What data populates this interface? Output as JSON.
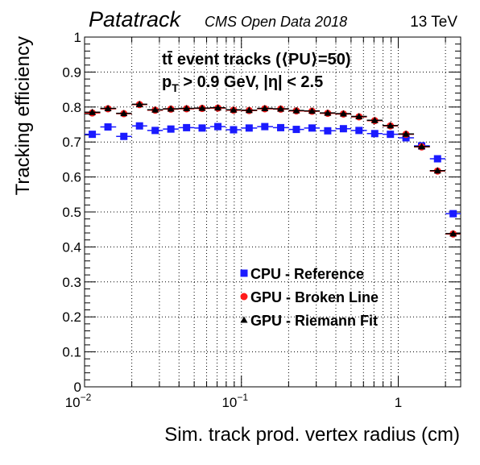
{
  "header": {
    "experiment": "Patatrack",
    "dataset": "CMS Open Data 2018",
    "energy": "13 TeV"
  },
  "chart_data": {
    "type": "scatter",
    "xlabel": "Sim. track prod. vertex radius (cm)",
    "ylabel": "Tracking efficiency",
    "xscale": "log",
    "xlim": [
      0.01,
      2.5
    ],
    "ylim": [
      0,
      1
    ],
    "grid": true,
    "xticks": [
      "10^-2",
      "10^-1",
      "1"
    ],
    "yticks": [
      "0",
      "0.1",
      "0.2",
      "0.3",
      "0.4",
      "0.5",
      "0.6",
      "0.7",
      "0.8",
      "0.9",
      "1"
    ],
    "annotations": {
      "process": "tt̄ event tracks (⟨PU⟩=50)",
      "cuts_pt": "p",
      "cuts_pt_sub": "T",
      "cuts_rest": " > 0.9 GeV, |η| < 2.5"
    },
    "legend_position": "center-right",
    "bin_edges": [
      0.01,
      0.0126,
      0.0159,
      0.02,
      0.0251,
      0.0316,
      0.0398,
      0.0501,
      0.0631,
      0.0794,
      0.1,
      0.126,
      0.159,
      0.2,
      0.251,
      0.316,
      0.398,
      0.501,
      0.631,
      0.794,
      1.0,
      1.26,
      1.59,
      2.0,
      2.5
    ],
    "x": [
      0.0112,
      0.0141,
      0.0178,
      0.0224,
      0.0282,
      0.0355,
      0.0447,
      0.0562,
      0.0708,
      0.0891,
      0.112,
      0.141,
      0.178,
      0.224,
      0.282,
      0.355,
      0.447,
      0.562,
      0.708,
      0.891,
      1.12,
      1.41,
      1.78,
      2.24
    ],
    "series": [
      {
        "name": "CPU - Reference",
        "color": "#1a1aff",
        "marker": "square",
        "values": [
          0.722,
          0.743,
          0.716,
          0.746,
          0.733,
          0.737,
          0.741,
          0.74,
          0.744,
          0.735,
          0.74,
          0.744,
          0.741,
          0.736,
          0.74,
          0.732,
          0.738,
          0.733,
          0.724,
          0.722,
          0.712,
          0.689,
          0.652,
          0.495
        ]
      },
      {
        "name": "GPU - Broken Line",
        "color": "#ff1a1a",
        "marker": "circle",
        "values": [
          0.783,
          0.795,
          0.781,
          0.807,
          0.791,
          0.794,
          0.795,
          0.796,
          0.797,
          0.791,
          0.79,
          0.795,
          0.794,
          0.789,
          0.788,
          0.782,
          0.78,
          0.772,
          0.761,
          0.746,
          0.722,
          0.686,
          0.617,
          0.437
        ]
      },
      {
        "name": "GPU - Riemann Fit",
        "color": "#000000",
        "marker": "triangle",
        "values": [
          0.785,
          0.796,
          0.782,
          0.808,
          0.792,
          0.795,
          0.796,
          0.797,
          0.798,
          0.792,
          0.791,
          0.796,
          0.795,
          0.79,
          0.789,
          0.783,
          0.781,
          0.773,
          0.762,
          0.747,
          0.723,
          0.687,
          0.618,
          0.438
        ]
      }
    ]
  }
}
